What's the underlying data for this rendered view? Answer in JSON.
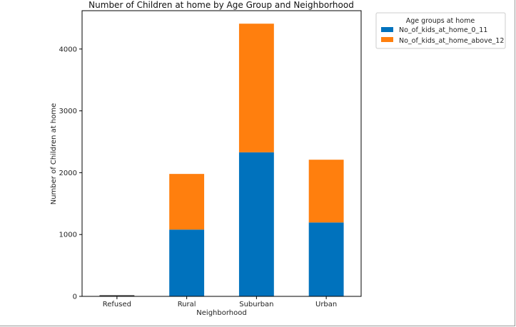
{
  "chart_data": {
    "type": "bar",
    "stacked": true,
    "title": "Number of Children at home by Age Group and Neighborhood",
    "xlabel": "Neighborhood",
    "ylabel": "Number of Children at home",
    "categories": [
      "Refused",
      "Rural",
      "Suburban",
      "Urban"
    ],
    "series": [
      {
        "name": "No_of_kids_at_home_0_11",
        "color": "#0072bd",
        "values": [
          3,
          1080,
          2330,
          1195
        ]
      },
      {
        "name": "No_of_kids_at_home_above_12",
        "color": "#ff7f0e",
        "values": [
          4,
          900,
          2080,
          1015
        ]
      }
    ],
    "ylim": [
      0,
      4620
    ],
    "yticks": [
      0,
      1000,
      2000,
      3000,
      4000
    ],
    "grid": false,
    "legend": {
      "title": "Age groups at home",
      "placement": "outside-top-right"
    }
  }
}
